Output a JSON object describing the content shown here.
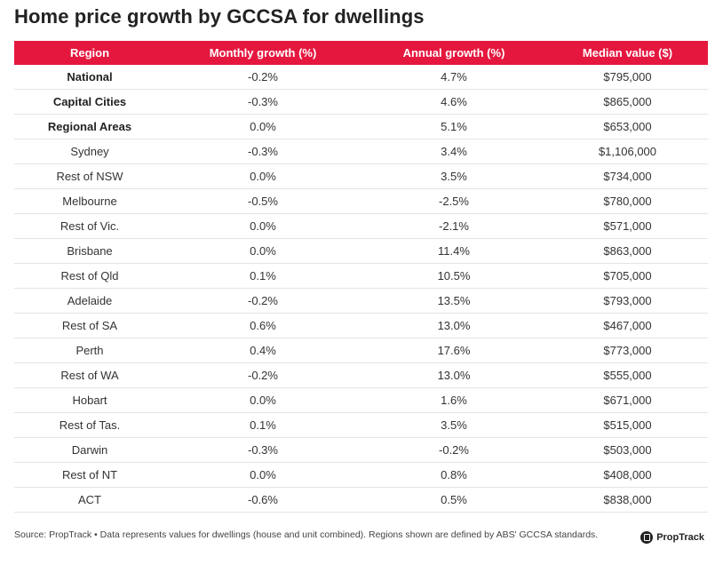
{
  "title": "Home price growth by GCCSA for dwellings",
  "chart_data": {
    "type": "table",
    "title": "Home price growth by GCCSA for dwellings",
    "columns": [
      "Region",
      "Monthly growth (%)",
      "Annual growth (%)",
      "Median value ($)"
    ],
    "rows": [
      {
        "region": "National",
        "monthly": "-0.2%",
        "annual": "4.7%",
        "median": "$795,000",
        "bold": true
      },
      {
        "region": "Capital Cities",
        "monthly": "-0.3%",
        "annual": "4.6%",
        "median": "$865,000",
        "bold": true
      },
      {
        "region": "Regional Areas",
        "monthly": "0.0%",
        "annual": "5.1%",
        "median": "$653,000",
        "bold": true
      },
      {
        "region": "Sydney",
        "monthly": "-0.3%",
        "annual": "3.4%",
        "median": "$1,106,000",
        "bold": false
      },
      {
        "region": "Rest of NSW",
        "monthly": "0.0%",
        "annual": "3.5%",
        "median": "$734,000",
        "bold": false
      },
      {
        "region": "Melbourne",
        "monthly": "-0.5%",
        "annual": "-2.5%",
        "median": "$780,000",
        "bold": false
      },
      {
        "region": "Rest of Vic.",
        "monthly": "0.0%",
        "annual": "-2.1%",
        "median": "$571,000",
        "bold": false
      },
      {
        "region": "Brisbane",
        "monthly": "0.0%",
        "annual": "11.4%",
        "median": "$863,000",
        "bold": false
      },
      {
        "region": "Rest of Qld",
        "monthly": "0.1%",
        "annual": "10.5%",
        "median": "$705,000",
        "bold": false
      },
      {
        "region": "Adelaide",
        "monthly": "-0.2%",
        "annual": "13.5%",
        "median": "$793,000",
        "bold": false
      },
      {
        "region": "Rest of SA",
        "monthly": "0.6%",
        "annual": "13.0%",
        "median": "$467,000",
        "bold": false
      },
      {
        "region": "Perth",
        "monthly": "0.4%",
        "annual": "17.6%",
        "median": "$773,000",
        "bold": false
      },
      {
        "region": "Rest of WA",
        "monthly": "-0.2%",
        "annual": "13.0%",
        "median": "$555,000",
        "bold": false
      },
      {
        "region": "Hobart",
        "monthly": "0.0%",
        "annual": "1.6%",
        "median": "$671,000",
        "bold": false
      },
      {
        "region": "Rest of Tas.",
        "monthly": "0.1%",
        "annual": "3.5%",
        "median": "$515,000",
        "bold": false
      },
      {
        "region": "Darwin",
        "monthly": "-0.3%",
        "annual": "-0.2%",
        "median": "$503,000",
        "bold": false
      },
      {
        "region": "Rest of NT",
        "monthly": "0.0%",
        "annual": "0.8%",
        "median": "$408,000",
        "bold": false
      },
      {
        "region": "ACT",
        "monthly": "-0.6%",
        "annual": "0.5%",
        "median": "$838,000",
        "bold": false
      }
    ]
  },
  "footer": {
    "source": "Source: PropTrack • Data represents values for dwellings (house and unit combined). Regions shown are defined by ABS' GCCSA standards.",
    "logo_text": "PropTrack",
    "logo_icon": "proptrack-logo-icon"
  },
  "colors": {
    "header_bg": "#e5173f",
    "header_text": "#ffffff",
    "border": "#e4e4e4"
  }
}
